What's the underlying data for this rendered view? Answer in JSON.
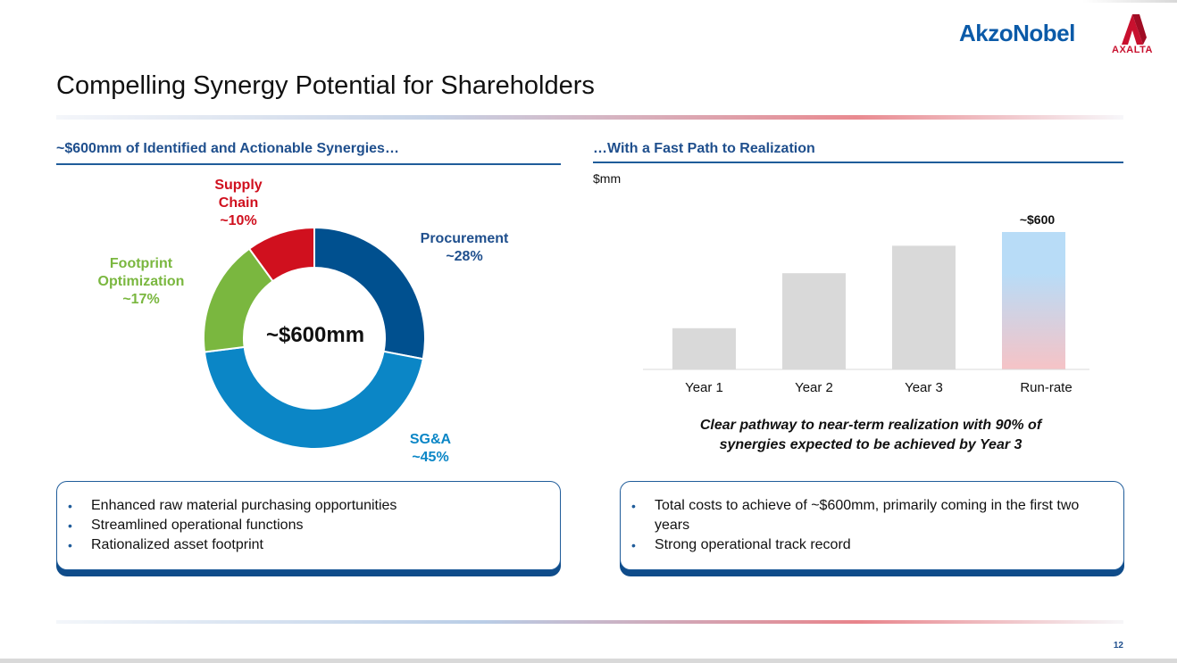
{
  "header": {
    "akzo_logo": "AkzoNobel",
    "axalta_logo": "AXALTA",
    "title": "Compelling Synergy Potential for Shareholders"
  },
  "left": {
    "heading": "~$600mm of Identified and Actionable Synergies…",
    "donut_center": "~$600mm",
    "segments": [
      {
        "name": "Procurement",
        "pct_label": "~28%",
        "value": 28,
        "color": "#00508f"
      },
      {
        "name": "SG&A",
        "pct_label": "~45%",
        "value": 45,
        "color": "#0b86c6"
      },
      {
        "name": "Footprint Optimization",
        "pct_label": "~17%",
        "value": 17,
        "color": "#7ab73f"
      },
      {
        "name": "Supply Chain",
        "pct_label": "~10%",
        "value": 10,
        "color": "#d0101e"
      }
    ],
    "labels": {
      "supply_1": "Supply",
      "supply_2": "Chain",
      "supply_pct": "~10%",
      "procurement": "Procurement",
      "procurement_pct": "~28%",
      "footprint_1": "Footprint",
      "footprint_2": "Optimization",
      "footprint_pct": "~17%",
      "sga": "SG&A",
      "sga_pct": "~45%"
    },
    "bullets": [
      "Enhanced raw material purchasing opportunities",
      "Streamlined operational functions",
      "Rationalized asset footprint"
    ]
  },
  "right": {
    "heading": "…With a Fast Path to Realization",
    "unit": "$mm",
    "caption_line1": "Clear pathway to near-term realization with 90% of",
    "caption_line2": "synergies expected to be achieved by Year 3",
    "bullets": [
      "Total costs to achieve of ~$600mm, primarily coming in the first two years",
      "Strong operational track record"
    ]
  },
  "chart_data": {
    "type": "bar",
    "categories": [
      "Year 1",
      "Year 2",
      "Year 3",
      "Run-rate"
    ],
    "values": [
      180,
      420,
      540,
      600
    ],
    "data_labels": [
      "",
      "",
      "",
      "~$600"
    ],
    "ylabel": "$mm",
    "ylim": [
      0,
      600
    ],
    "bar_color": "#d9d9d9",
    "highlight_colors": [
      "#b8dcf7",
      "#f6c3c6"
    ]
  },
  "footer": {
    "page_number": "12"
  }
}
